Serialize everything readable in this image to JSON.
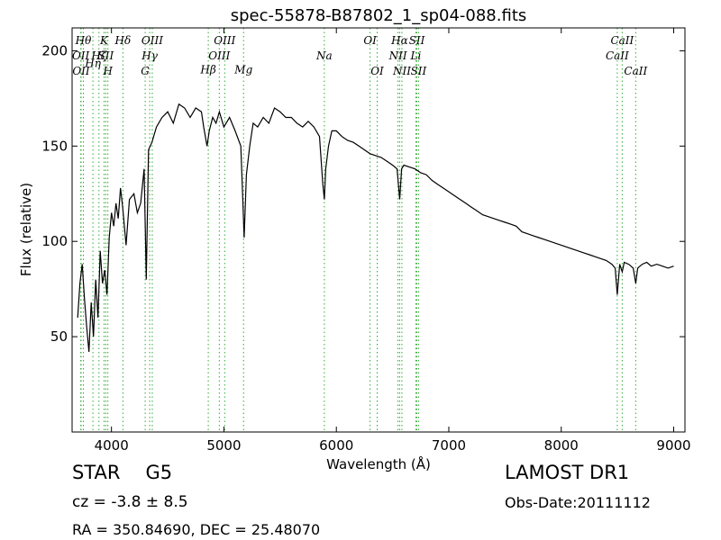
{
  "chart_data": {
    "type": "line",
    "title": "spec-55878-B87802_1_sp04-088.fits",
    "xlabel": "Wavelength (Å)",
    "ylabel": "Flux (relative)",
    "xlim": [
      3650,
      9100
    ],
    "ylim": [
      0,
      212
    ],
    "xticks": [
      4000,
      5000,
      6000,
      7000,
      8000,
      9000
    ],
    "yticks": [
      50,
      100,
      150,
      200
    ],
    "grid": false,
    "line_color": "#000000",
    "marker_color": "#33aa33",
    "series": [
      {
        "x": [
          3700,
          3720,
          3740,
          3760,
          3780,
          3800,
          3820,
          3840,
          3860,
          3880,
          3900,
          3920,
          3940,
          3960,
          3980,
          4000,
          4020,
          4040,
          4060,
          4080,
          4100,
          4130,
          4160,
          4200,
          4230,
          4260,
          4290,
          4310,
          4330,
          4360,
          4400,
          4450,
          4500,
          4550,
          4600,
          4650,
          4700,
          4750,
          4800,
          4820,
          4850,
          4870,
          4900,
          4930,
          4960,
          5000,
          5050,
          5100,
          5150,
          5170,
          5180,
          5200,
          5230,
          5260,
          5300,
          5350,
          5400,
          5450,
          5500,
          5550,
          5600,
          5650,
          5700,
          5750,
          5800,
          5850,
          5880,
          5893,
          5905,
          5930,
          5960,
          6000,
          6050,
          6100,
          6150,
          6200,
          6250,
          6300,
          6350,
          6400,
          6450,
          6500,
          6540,
          6563,
          6580,
          6600,
          6650,
          6700,
          6750,
          6800,
          6850,
          6900,
          6950,
          7000,
          7050,
          7100,
          7150,
          7200,
          7250,
          7300,
          7350,
          7400,
          7450,
          7500,
          7550,
          7600,
          7650,
          7700,
          7750,
          7800,
          7850,
          7900,
          7950,
          8000,
          8050,
          8100,
          8150,
          8200,
          8250,
          8300,
          8350,
          8400,
          8450,
          8480,
          8498,
          8520,
          8542,
          8560,
          8600,
          8640,
          8662,
          8680,
          8720,
          8760,
          8800,
          8850,
          8900,
          8950,
          9000
        ],
        "y": [
          60,
          78,
          88,
          70,
          55,
          42,
          68,
          50,
          80,
          60,
          95,
          78,
          85,
          72,
          102,
          115,
          108,
          120,
          112,
          128,
          118,
          98,
          122,
          125,
          115,
          120,
          138,
          80,
          148,
          152,
          160,
          165,
          168,
          162,
          172,
          170,
          165,
          170,
          168,
          160,
          150,
          158,
          165,
          162,
          168,
          160,
          165,
          158,
          150,
          118,
          102,
          135,
          150,
          162,
          160,
          165,
          162,
          170,
          168,
          165,
          165,
          162,
          160,
          163,
          160,
          155,
          130,
          122,
          138,
          150,
          158,
          158,
          155,
          153,
          152,
          150,
          148,
          146,
          145,
          144,
          142,
          140,
          138,
          122,
          138,
          140,
          139,
          138,
          136,
          135,
          132,
          130,
          128,
          126,
          124,
          122,
          120,
          118,
          116,
          114,
          113,
          112,
          111,
          110,
          109,
          108,
          105,
          104,
          103,
          102,
          101,
          100,
          99,
          98,
          97,
          96,
          95,
          94,
          93,
          92,
          91,
          90,
          88,
          86,
          72,
          88,
          84,
          89,
          88,
          86,
          78,
          86,
          88,
          89,
          87,
          88,
          87,
          86,
          87
        ]
      }
    ],
    "line_markers": [
      {
        "x": 3727,
        "label": "OII",
        "row": 1
      },
      {
        "x": 3730,
        "label": "OII",
        "row": 2
      },
      {
        "x": 3750,
        "label": "Hθ",
        "row": 0
      },
      {
        "x": 3835,
        "label": "Hη",
        "row": 1.5
      },
      {
        "x": 3889,
        "label": "Hζ",
        "row": 1
      },
      {
        "x": 3934,
        "label": "K",
        "row": 0
      },
      {
        "x": 3950,
        "label": "SII",
        "row": 1
      },
      {
        "x": 3968,
        "label": "H",
        "row": 2
      },
      {
        "x": 4102,
        "label": "Hδ",
        "row": 0
      },
      {
        "x": 4300,
        "label": "G",
        "row": 2
      },
      {
        "x": 4340,
        "label": "Hγ",
        "row": 1
      },
      {
        "x": 4363,
        "label": "OIII",
        "row": 0
      },
      {
        "x": 4861,
        "label": "Hβ",
        "row": 1.9
      },
      {
        "x": 4959,
        "label": "OIII",
        "row": 1
      },
      {
        "x": 5007,
        "label": "OIII",
        "row": 0
      },
      {
        "x": 5175,
        "label": "Mg",
        "row": 1.9
      },
      {
        "x": 5893,
        "label": "Na",
        "row": 1
      },
      {
        "x": 6300,
        "label": "OI",
        "row": 0
      },
      {
        "x": 6363,
        "label": "OI",
        "row": 2
      },
      {
        "x": 6548,
        "label": "NII",
        "row": 1
      },
      {
        "x": 6563,
        "label": "Hα",
        "row": 0
      },
      {
        "x": 6583,
        "label": "NII",
        "row": 2
      },
      {
        "x": 6707,
        "label": "Li",
        "row": 1
      },
      {
        "x": 6716,
        "label": "SII",
        "row": 0
      },
      {
        "x": 6731,
        "label": "SII",
        "row": 2
      },
      {
        "x": 8498,
        "label": "CaII",
        "row": 1
      },
      {
        "x": 8542,
        "label": "CaII",
        "row": 0
      },
      {
        "x": 8662,
        "label": "CaII",
        "row": 2
      }
    ]
  },
  "footer": {
    "class_label": "STAR",
    "subclass_label": "G5",
    "survey": "LAMOST DR1",
    "cz": "cz = -3.8 ± 8.5",
    "obs_date": "Obs-Date:20111112",
    "radec": "RA = 350.84690, DEC = 25.48070"
  }
}
